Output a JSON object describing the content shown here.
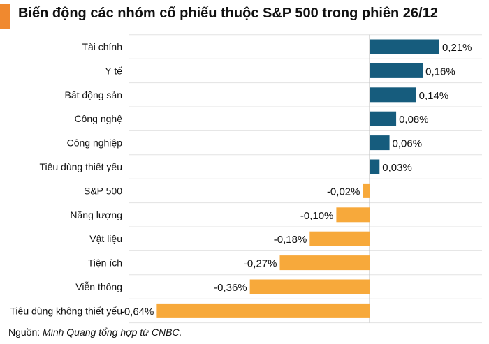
{
  "header": {
    "title": "Biến động các nhóm cổ phiếu thuộc S&P 500 trong phiên 26/12",
    "accent_color": "#f0892f"
  },
  "chart_data": {
    "type": "bar",
    "orientation": "horizontal",
    "categories": [
      "Tài chính",
      "Y tế",
      "Bất động sản",
      "Công nghệ",
      "Công nghiệp",
      "Tiêu dùng thiết yếu",
      "S&P 500",
      "Năng lượng",
      "Vật liệu",
      "Tiện ích",
      "Viễn thông",
      "Tiêu dùng không thiết yếu"
    ],
    "values": [
      0.21,
      0.16,
      0.14,
      0.08,
      0.06,
      0.03,
      -0.02,
      -0.1,
      -0.18,
      -0.27,
      -0.36,
      -0.64
    ],
    "value_labels": [
      "0,21%",
      "0,16%",
      "0,14%",
      "0,08%",
      "0,06%",
      "0,03%",
      "-0,02%",
      "-0,10%",
      "-0,18%",
      "-0,27%",
      "-0,36%",
      "-0,64%"
    ],
    "xlim": [
      -0.64,
      0.21
    ],
    "colors": {
      "positive": "#165c7d",
      "negative": "#f7a93b"
    },
    "grid": true
  },
  "footer": {
    "source_prefix": "Nguồn: ",
    "source_text": "Minh Quang tổng hợp từ CNBC."
  }
}
